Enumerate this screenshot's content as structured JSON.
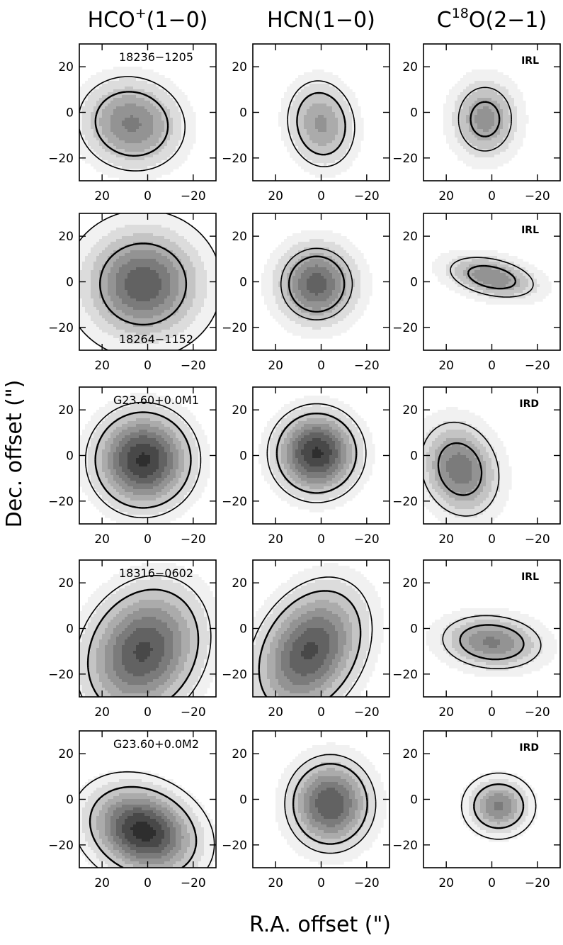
{
  "chart_data": {
    "type": "contour",
    "xlabel": "R.A. offset (\")",
    "ylabel": "Dec. offset (\")",
    "xlim": [
      30,
      -30
    ],
    "ylim": [
      -30,
      30
    ],
    "x_ticks": [
      20,
      0,
      -20
    ],
    "y_ticks": [
      20,
      0,
      -20
    ],
    "x_tick_labels": [
      "20",
      "0",
      "−20"
    ],
    "y_tick_labels": [
      "20",
      "0",
      "−20"
    ],
    "grayscale_levels": [
      "#f1f1f1",
      "#dcdcdc",
      "#c4c4c4",
      "#ababab",
      "#939393",
      "#7b7b7b",
      "#626262",
      "#484848",
      "#2e2e2e",
      "#161616"
    ],
    "columns": [
      {
        "id": "hco",
        "label": "HCO",
        "sup": "+",
        "suffix": "(1−0)"
      },
      {
        "id": "hcn",
        "label": "HCN",
        "sup": "",
        "suffix": "(1−0)"
      },
      {
        "id": "c18o",
        "label": "C",
        "sup": "18",
        "suffix": "O(2−1)"
      }
    ],
    "sources": [
      {
        "name": "18236−1205",
        "label_pos": "top",
        "tag": "IRL",
        "maps": [
          {
            "cx": 7,
            "cy": -5,
            "sx": 15,
            "sy": 13,
            "peak": 0.62,
            "angle": 15,
            "solid": 0.35,
            "dashed": 0.18
          },
          {
            "cx": 0,
            "cy": -5,
            "sx": 10,
            "sy": 13,
            "peak": 0.52,
            "angle": -10,
            "solid": 0.3,
            "dashed": 0.18
          },
          {
            "cx": 3,
            "cy": -3,
            "sx": 10,
            "sy": 12,
            "peak": 0.55,
            "angle": 0,
            "solid": 0.45,
            "dashed": 0.28
          }
        ]
      },
      {
        "name": "18264−1152",
        "label_pos": "bottom",
        "tag": "IRL",
        "maps": [
          {
            "cx": 2,
            "cy": -1,
            "sx": 17,
            "sy": 16,
            "peak": 0.78,
            "angle": 0,
            "solid": 0.42,
            "dashed": 0.1
          },
          {
            "cx": 2,
            "cy": -1,
            "sx": 12,
            "sy": 12,
            "peak": 0.75,
            "angle": 0,
            "solid": 0.45,
            "dashed": 0.32
          },
          {
            "cx": 0,
            "cy": 2,
            "sx": 14,
            "sy": 6,
            "peak": 0.6,
            "angle": 12,
            "solid": 0.45,
            "dashed": 0.25
          }
        ]
      },
      {
        "name": "G23.60+0.0M1",
        "label_pos": "top",
        "tag": "IRD",
        "maps": [
          {
            "cx": 2,
            "cy": -2,
            "sx": 14,
            "sy": 14,
            "peak": 0.92,
            "angle": 0,
            "solid": 0.3,
            "dashed": 0.18
          },
          {
            "cx": 2,
            "cy": 1,
            "sx": 12,
            "sy": 12,
            "peak": 0.92,
            "angle": 0,
            "solid": 0.32,
            "dashed": 0.18
          },
          {
            "cx": 14,
            "cy": -6,
            "sx": 11,
            "sy": 14,
            "peak": 0.68,
            "angle": -20,
            "solid": 0.48,
            "dashed": 0.22
          }
        ]
      },
      {
        "name": "18316−0602",
        "label_pos": "top",
        "tag": "IRL",
        "maps": [
          {
            "cx": 2,
            "cy": -10,
            "sx": 16,
            "sy": 20,
            "peak": 0.82,
            "angle": 30,
            "solid": 0.3,
            "dashed": 0.18
          },
          {
            "cx": 5,
            "cy": -10,
            "sx": 14,
            "sy": 20,
            "peak": 0.82,
            "angle": 30,
            "solid": 0.3,
            "dashed": 0.18
          },
          {
            "cx": 0,
            "cy": -6,
            "sx": 15,
            "sy": 8,
            "peak": 0.62,
            "angle": 5,
            "solid": 0.4,
            "dashed": 0.22
          }
        ]
      },
      {
        "name": "G23.60+0.0M2",
        "label_pos": "top",
        "tag": "IRD",
        "maps": [
          {
            "cx": 2,
            "cy": -14,
            "sx": 16,
            "sy": 12,
            "peak": 0.95,
            "angle": 25,
            "solid": 0.3,
            "dashed": 0.12
          },
          {
            "cx": -4,
            "cy": -2,
            "sx": 12,
            "sy": 13,
            "peak": 0.8,
            "angle": 0,
            "solid": 0.32,
            "dashed": 0.2
          },
          {
            "cx": -3,
            "cy": -3,
            "sx": 9,
            "sy": 8,
            "peak": 0.62,
            "angle": 0,
            "solid": 0.3,
            "dashed": 0.12
          }
        ]
      }
    ]
  }
}
